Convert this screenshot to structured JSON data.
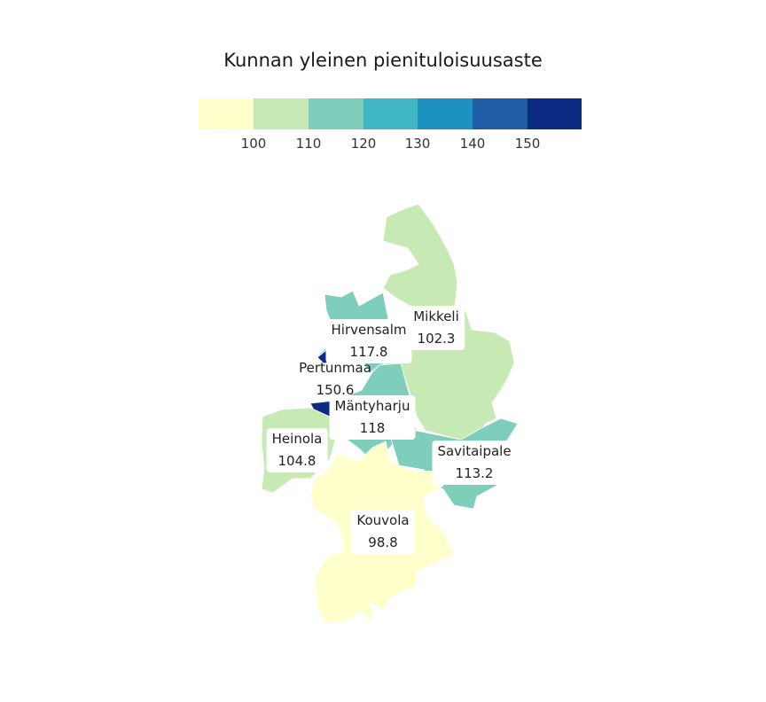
{
  "title": "Kunnan yleinen pienituloisuusaste",
  "legend": {
    "colors": [
      "#ffffcc",
      "#c7e9b4",
      "#7fcdbb",
      "#41b6c4",
      "#1d91c0",
      "#225ea8",
      "#0c2c84"
    ],
    "ticks": [
      "100",
      "110",
      "120",
      "130",
      "140",
      "150"
    ]
  },
  "regions": [
    {
      "name": "Mikkeli",
      "value": "102.3",
      "color": "#c7e9b4"
    },
    {
      "name": "Hirvensalm",
      "value": "117.8",
      "color": "#7fcdbb"
    },
    {
      "name": "Pertunmaa",
      "value": "150.6",
      "color": "#0c2c84"
    },
    {
      "name": "Mäntyharju",
      "value": "118",
      "color": "#7fcdbb"
    },
    {
      "name": "Heinola",
      "value": "104.8",
      "color": "#c7e9b4"
    },
    {
      "name": "Savitaipale",
      "value": "113.2",
      "color": "#7fcdbb"
    },
    {
      "name": "Kouvola",
      "value": "98.8",
      "color": "#ffffcc"
    }
  ]
}
